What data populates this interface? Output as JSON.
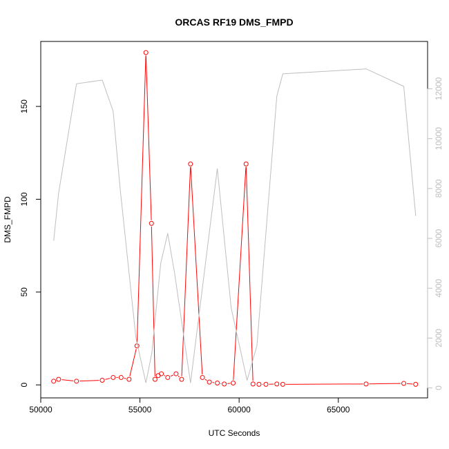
{
  "chart_data": {
    "type": "line",
    "title": "ORCAS RF19 DMS_FMPD",
    "xlabel": "UTC Seconds",
    "ylabel": "DMS_FMPD",
    "xlim": [
      50000,
      69500
    ],
    "ylim": [
      -7,
      185
    ],
    "y2lim": [
      -400,
      13900
    ],
    "x_ticks": [
      50000,
      55000,
      60000,
      65000
    ],
    "y_ticks": [
      0,
      50,
      100,
      150
    ],
    "y2_ticks": [
      0,
      2000,
      4000,
      6000,
      8000,
      10000,
      12000
    ],
    "colors": {
      "primary": "#ff0000",
      "secondary": "#bebebe",
      "axis": "#000000",
      "secondary_axis": "#bebebe"
    },
    "series": [
      {
        "axis": "left",
        "style": "points-lines",
        "x": [
          50650,
          50900,
          51800,
          53100,
          53650,
          54050,
          54450,
          54850,
          55300,
          55580,
          55760,
          55920,
          56080,
          56400,
          56820,
          57100,
          57550,
          58150,
          58500,
          58900,
          59250,
          59700,
          60350,
          60700,
          61000,
          61350,
          61900,
          62200,
          66400,
          68300,
          68900
        ],
        "y": [
          2,
          3,
          2,
          2.5,
          4,
          4,
          3,
          21,
          179,
          87,
          3,
          5,
          6,
          4,
          6,
          3,
          119,
          4,
          1.5,
          1,
          0.5,
          1,
          119,
          0.5,
          0.3,
          0.3,
          0.5,
          0.3,
          0.5,
          0.8,
          0.3
        ]
      },
      {
        "axis": "right",
        "style": "line",
        "x": [
          50650,
          50900,
          51800,
          53100,
          53650,
          54000,
          54800,
          55300,
          55600,
          56050,
          56400,
          56750,
          57550,
          58900,
          59600,
          60400,
          60900,
          61900,
          62200,
          66400,
          68300,
          68900
        ],
        "y": [
          5900,
          7800,
          12200,
          12350,
          11100,
          8000,
          2000,
          200,
          1400,
          5000,
          6200,
          4600,
          200,
          8800,
          3200,
          300,
          1700,
          11700,
          12600,
          12800,
          12100,
          6900
        ]
      }
    ]
  }
}
